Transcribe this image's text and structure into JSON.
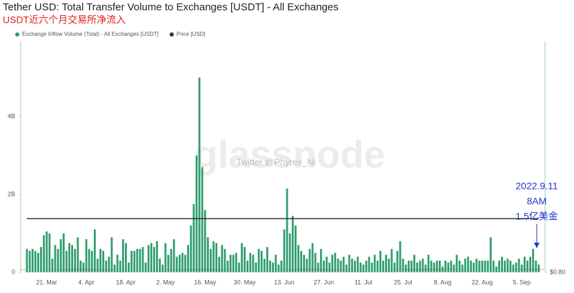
{
  "chart_data": {
    "type": "bar",
    "title": "Tether USD: Total Transfer Volume to Exchanges [USDT] - All Exchanges",
    "subtitle": "USDT近六个月交易所净流入",
    "watermark": "glassnode",
    "watermark_sub": "Twitter @Phyrex_Ni",
    "annotation": [
      "2022.9.11",
      "8AM",
      "1.5亿美金"
    ],
    "categories": [
      null,
      null,
      null,
      null,
      null,
      null,
      null,
      "21. Mar",
      null,
      null,
      null,
      null,
      null,
      null,
      null,
      null,
      null,
      null,
      null,
      null,
      null,
      "4. Apr",
      null,
      null,
      null,
      null,
      null,
      null,
      null,
      null,
      null,
      null,
      null,
      null,
      null,
      "18. Apr",
      null,
      null,
      null,
      null,
      null,
      null,
      null,
      null,
      null,
      null,
      null,
      null,
      null,
      "2. May",
      null,
      null,
      null,
      null,
      null,
      null,
      null,
      null,
      null,
      null,
      null,
      null,
      null,
      "16. May",
      null,
      null,
      null,
      null,
      null,
      null,
      null,
      null,
      null,
      null,
      null,
      null,
      null,
      "30. May",
      null,
      null,
      null,
      null,
      null,
      null,
      null,
      null,
      null,
      null,
      null,
      null,
      null,
      "13. Jun",
      null,
      null,
      null,
      null,
      null,
      null,
      null,
      null,
      null,
      null,
      null,
      null,
      null,
      "27. Jun",
      null,
      null,
      null,
      null,
      null,
      null,
      null,
      null,
      null,
      null,
      null,
      null,
      null,
      "11. Jul",
      null,
      null,
      null,
      null,
      null,
      null,
      null,
      null,
      null,
      null,
      null,
      null,
      null,
      "25. Jul",
      null,
      null,
      null,
      null,
      null,
      null,
      null,
      null,
      null,
      null,
      null,
      null,
      null,
      "8. Aug",
      null,
      null,
      null,
      null,
      null,
      null,
      null,
      null,
      null,
      null,
      null,
      null,
      null,
      "22. Aug",
      null,
      null,
      null,
      null,
      null,
      null,
      null,
      null,
      null,
      null,
      null,
      null,
      null,
      "5. Sep",
      null,
      null,
      null,
      null,
      null,
      null
    ],
    "series": [
      {
        "name": "Exchange Inflow Volume (Total) - All Exchanges [USDT]",
        "color": "#2f9d6f",
        "values": [
          0.6,
          0.55,
          0.6,
          0.55,
          0.5,
          0.65,
          0.95,
          1.05,
          1.0,
          0.35,
          0.7,
          0.6,
          0.85,
          1.0,
          0.55,
          0.75,
          0.7,
          0.6,
          0.9,
          0.3,
          0.25,
          0.85,
          0.6,
          0.55,
          1.1,
          0.35,
          0.6,
          0.55,
          0.3,
          0.4,
          0.9,
          0.2,
          0.45,
          0.3,
          0.85,
          0.75,
          0.25,
          0.55,
          0.55,
          0.6,
          0.6,
          0.65,
          0.25,
          0.7,
          0.75,
          0.65,
          0.8,
          0.35,
          0.2,
          0.75,
          0.45,
          0.6,
          0.85,
          0.4,
          0.45,
          0.5,
          0.45,
          0.7,
          1.2,
          1.75,
          3.0,
          5.0,
          2.7,
          1.6,
          0.9,
          0.6,
          0.8,
          0.75,
          0.4,
          0.7,
          0.6,
          0.3,
          0.45,
          0.45,
          0.5,
          0.25,
          0.75,
          0.65,
          0.3,
          0.5,
          0.45,
          0.25,
          0.6,
          0.55,
          0.35,
          0.65,
          0.3,
          0.25,
          0.45,
          0.2,
          0.3,
          1.1,
          2.15,
          1.0,
          1.45,
          1.2,
          0.7,
          0.55,
          0.45,
          0.35,
          0.6,
          0.75,
          0.5,
          0.25,
          0.6,
          0.3,
          0.4,
          0.25,
          0.45,
          0.5,
          0.35,
          0.3,
          0.4,
          0.2,
          0.45,
          0.35,
          0.3,
          0.4,
          0.25,
          0.2,
          0.3,
          0.4,
          0.25,
          0.45,
          0.3,
          0.55,
          0.3,
          0.45,
          0.35,
          0.6,
          0.25,
          0.55,
          0.8,
          0.35,
          0.2,
          0.3,
          0.3,
          0.45,
          0.25,
          0.3,
          0.35,
          0.2,
          0.45,
          0.3,
          0.25,
          0.3,
          0.3,
          0.15,
          0.3,
          0.25,
          0.3,
          0.2,
          0.45,
          0.3,
          0.2,
          0.35,
          0.4,
          0.3,
          0.25,
          0.35,
          0.3,
          0.3,
          0.3,
          0.3,
          0.9,
          0.3,
          0.15,
          0.3,
          0.4,
          0.3,
          0.35,
          0.3,
          0.2,
          0.25,
          0.35,
          0.2,
          0.4,
          0.3,
          0.4,
          0.6,
          0.3,
          0.2
        ]
      },
      {
        "name": "Price [USD]",
        "color": "#333333",
        "axis": "y2",
        "values": [
          1,
          1,
          1,
          1,
          1,
          1,
          1,
          1,
          1,
          1,
          1,
          1,
          1,
          1,
          1,
          1,
          1,
          1,
          1,
          1,
          1,
          1,
          1,
          1,
          1,
          1,
          1,
          1,
          1,
          1,
          1,
          1,
          1,
          1,
          1,
          1,
          1,
          1,
          1,
          1,
          1,
          1,
          1,
          1,
          1,
          1,
          1,
          1,
          1,
          1,
          1,
          1,
          1,
          1,
          1,
          1,
          1,
          1,
          1,
          1,
          1,
          1,
          1,
          1,
          1,
          1,
          1,
          1,
          1,
          1,
          1,
          1,
          1,
          1,
          1,
          1,
          1,
          1,
          1,
          1,
          1,
          1,
          1,
          1,
          1,
          1,
          1,
          1,
          1,
          1,
          1,
          1,
          1,
          1,
          1,
          1,
          1,
          1,
          1,
          1,
          1,
          1,
          1,
          1,
          1,
          1,
          1,
          1,
          1,
          1,
          1,
          1,
          1,
          1,
          1,
          1,
          1,
          1,
          1,
          1,
          1,
          1,
          1,
          1,
          1,
          1,
          1,
          1,
          1,
          1,
          1,
          1,
          1,
          1,
          1,
          1,
          1,
          1,
          1,
          1,
          1,
          1,
          1,
          1,
          1,
          1,
          1,
          1,
          1,
          1,
          1,
          1,
          1,
          1,
          1,
          1,
          1,
          1,
          1,
          1,
          1,
          1,
          1,
          1,
          1,
          1,
          1,
          1,
          1,
          1,
          1,
          1,
          1,
          1,
          1,
          1,
          1,
          1,
          1,
          1,
          1,
          1
        ]
      }
    ],
    "ylim": [
      0,
      5.93
    ],
    "yticks": [
      0,
      {
        "value": 2,
        "label": "2B"
      },
      {
        "value": 4,
        "label": "4B"
      }
    ],
    "y2lim": [
      0.8,
      1.66
    ],
    "y2ticks": [
      {
        "value": 0.8,
        "label": "$0.80"
      }
    ],
    "grid": false
  }
}
